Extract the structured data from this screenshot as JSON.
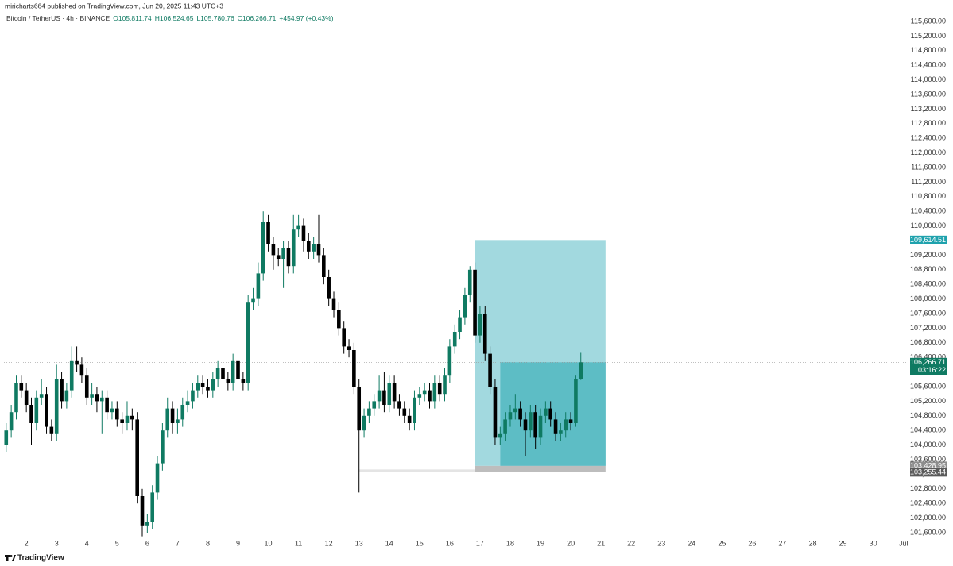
{
  "chart_data": {
    "type": "candlestick",
    "subtitle": "miricharts664 published on TradingView.com, Jun 20, 2025 11:43 UTC+3",
    "title": "Bitcoin / TetherUS · 4h · BINANCE",
    "ohlc_legend": [
      "O105,811.74",
      "H106,524.65",
      "L105,780.76",
      "C106,266.71",
      "+454.97 (+0.43%)"
    ],
    "brand": "TradingView",
    "up_color": "#0f7a62",
    "down_color": "#000000",
    "grid": false,
    "x": [
      1.333,
      1.5,
      1.667,
      1.833,
      2,
      2.167,
      2.333,
      2.5,
      2.667,
      2.833,
      3,
      3.167,
      3.333,
      3.5,
      3.667,
      3.833,
      4,
      4.167,
      4.333,
      4.5,
      4.667,
      4.833,
      5,
      5.167,
      5.333,
      5.5,
      5.667,
      5.833,
      6,
      6.167,
      6.333,
      6.5,
      6.667,
      6.833,
      7,
      7.167,
      7.333,
      7.5,
      7.667,
      7.833,
      8,
      8.167,
      8.333,
      8.5,
      8.667,
      8.833,
      9,
      9.167,
      9.333,
      9.5,
      9.667,
      9.833,
      10,
      10.167,
      10.333,
      10.5,
      10.667,
      10.833,
      11,
      11.167,
      11.333,
      11.5,
      11.667,
      11.833,
      12,
      12.167,
      12.333,
      12.5,
      12.667,
      12.833,
      13,
      13.167,
      13.333,
      13.5,
      13.667,
      13.833,
      14,
      14.167,
      14.333,
      14.5,
      14.667,
      14.833,
      15,
      15.167,
      15.333,
      15.5,
      15.667,
      15.833,
      16,
      16.167,
      16.333,
      16.5,
      16.667,
      16.833,
      17,
      17.167,
      17.333,
      17.5,
      17.667,
      17.833,
      18,
      18.167,
      18.333,
      18.5,
      18.667,
      18.833,
      19,
      19.167,
      19.333,
      19.5,
      19.667,
      19.833,
      20,
      20.167,
      20.333
    ],
    "open": [
      104000,
      104400,
      104900,
      105700,
      105500,
      105100,
      104600,
      105300,
      105400,
      104500,
      104300,
      105800,
      105200,
      105500,
      106300,
      106200,
      105900,
      105300,
      105400,
      105200,
      105300,
      104900,
      105000,
      104700,
      104600,
      104800,
      104700,
      102600,
      101800,
      101900,
      102700,
      103500,
      104400,
      105000,
      104600,
      104700,
      105100,
      105200,
      105500,
      105700,
      105600,
      105500,
      105800,
      106100,
      105800,
      105700,
      106300,
      105800,
      105700,
      107900,
      108000,
      108700,
      110100,
      109500,
      109200,
      109100,
      109400,
      108900,
      109900,
      110000,
      109600,
      109300,
      109500,
      109200,
      108600,
      108000,
      107700,
      107200,
      106700,
      106600,
      105600,
      104400,
      104800,
      105000,
      105200,
      105500,
      105100,
      105700,
      105200,
      105000,
      104800,
      104600,
      105300,
      105400,
      105500,
      105200,
      105700,
      105400,
      105900,
      106700,
      107100,
      107500,
      108100,
      108800,
      107000,
      107600,
      106500,
      105600,
      104200,
      104300,
      104700,
      104900,
      105000,
      104700,
      104400,
      104900,
      104200,
      104800,
      105000,
      104700,
      104300,
      104400,
      104700,
      104600,
      105811.74
    ],
    "high": [
      104600,
      105100,
      105900,
      105900,
      105700,
      105300,
      105500,
      105800,
      105600,
      104700,
      106200,
      106000,
      105700,
      106700,
      106700,
      106400,
      106100,
      105700,
      105600,
      105500,
      105500,
      105200,
      105200,
      104900,
      105200,
      105000,
      104900,
      102800,
      102100,
      102900,
      103700,
      104600,
      105300,
      105200,
      105000,
      105300,
      105500,
      105700,
      105900,
      105900,
      105800,
      106000,
      106300,
      106300,
      106000,
      106500,
      106500,
      106000,
      108100,
      108300,
      109000,
      110400,
      110300,
      109700,
      109400,
      109600,
      109600,
      110300,
      110300,
      110200,
      109800,
      109700,
      110300,
      109400,
      108800,
      108200,
      107900,
      107400,
      106900,
      106800,
      105800,
      105000,
      105200,
      105400,
      105900,
      106000,
      105900,
      105900,
      105400,
      105200,
      105000,
      105500,
      105600,
      105700,
      105700,
      105900,
      105900,
      106100,
      106900,
      107300,
      107700,
      108300,
      108900,
      109000,
      107800,
      107800,
      106700,
      105800,
      104500,
      104900,
      105100,
      105400,
      105200,
      104900,
      105100,
      105100,
      105000,
      105200,
      105200,
      104900,
      104600,
      104900,
      104900,
      105900,
      106524.65
    ],
    "low": [
      103800,
      104200,
      104700,
      105300,
      104900,
      104000,
      104400,
      105100,
      104300,
      104100,
      104100,
      105000,
      105000,
      105300,
      106000,
      105700,
      105100,
      105100,
      104900,
      104300,
      104700,
      104700,
      104500,
      104300,
      104400,
      104400,
      102400,
      101500,
      101600,
      101700,
      102500,
      103300,
      104200,
      104300,
      104300,
      104500,
      104900,
      105000,
      105300,
      105400,
      105300,
      105300,
      105600,
      105600,
      105500,
      105500,
      105600,
      105500,
      105500,
      107700,
      107800,
      108500,
      109300,
      108800,
      108900,
      108300,
      108700,
      108700,
      109700,
      109300,
      109100,
      109100,
      109000,
      108400,
      107800,
      107500,
      107000,
      106500,
      106400,
      105400,
      102700,
      104200,
      104600,
      104800,
      105000,
      104900,
      104900,
      105000,
      104800,
      104600,
      104400,
      104400,
      105100,
      105200,
      105000,
      105000,
      105200,
      105200,
      105700,
      106500,
      106900,
      107300,
      107900,
      106800,
      106800,
      106300,
      105400,
      104000,
      104000,
      104100,
      104500,
      104700,
      104500,
      103700,
      104200,
      103900,
      104000,
      104600,
      104500,
      104100,
      104100,
      104200,
      104400,
      104500,
      105780.76
    ],
    "close": [
      104400,
      104900,
      105700,
      105500,
      105100,
      104600,
      105300,
      105400,
      104500,
      104300,
      105800,
      105200,
      105500,
      106300,
      106200,
      105900,
      105300,
      105400,
      105200,
      105300,
      104900,
      105000,
      104700,
      104600,
      104800,
      104700,
      102600,
      101800,
      101900,
      102700,
      103500,
      104400,
      105000,
      104600,
      104700,
      105100,
      105200,
      105500,
      105700,
      105600,
      105500,
      105800,
      106100,
      105800,
      105700,
      106300,
      105800,
      105700,
      107900,
      108000,
      108700,
      110100,
      109500,
      109200,
      109100,
      109400,
      108900,
      109900,
      110000,
      109600,
      109300,
      109500,
      109200,
      108600,
      108000,
      107700,
      107200,
      106700,
      106600,
      105600,
      104400,
      104800,
      105000,
      105200,
      105500,
      105100,
      105700,
      105200,
      105000,
      104800,
      104600,
      105300,
      105400,
      105500,
      105200,
      105700,
      105400,
      105900,
      106700,
      107100,
      107500,
      108100,
      108800,
      107000,
      107600,
      106500,
      105600,
      104200,
      104300,
      104700,
      104900,
      105000,
      104700,
      104400,
      104900,
      104200,
      104800,
      105000,
      104700,
      104300,
      104400,
      104700,
      104600,
      105811.74,
      106266.71
    ],
    "xlim": [
      1.26,
      31.22
    ],
    "xticks": [
      2,
      3,
      4,
      5,
      6,
      7,
      8,
      9,
      10,
      11,
      12,
      13,
      14,
      15,
      16,
      17,
      18,
      19,
      20,
      21,
      22,
      23,
      24,
      25,
      26,
      27,
      28,
      29,
      30,
      {
        "value": 31,
        "label": "Jul"
      }
    ],
    "ylim": [
      101600,
      115600
    ],
    "yticks": [
      {
        "value": 101600,
        "label": "101,600.00"
      },
      {
        "value": 102000,
        "label": "102,000.00"
      },
      {
        "value": 102400,
        "label": "102,400.00"
      },
      {
        "value": 102800,
        "label": "102,800.00"
      },
      {
        "value": 103200,
        "label": "103,200.00"
      },
      {
        "value": 103600,
        "label": "103,600.00"
      },
      {
        "value": 104000,
        "label": "104,000.00"
      },
      {
        "value": 104400,
        "label": "104,400.00"
      },
      {
        "value": 104800,
        "label": "104,800.00"
      },
      {
        "value": 105200,
        "label": "105,200.00"
      },
      {
        "value": 105600,
        "label": "105,600.00"
      },
      {
        "value": 106000,
        "label": "106,000.00"
      },
      {
        "value": 106400,
        "label": "106,400.00"
      },
      {
        "value": 106800,
        "label": "106,800.00"
      },
      {
        "value": 107200,
        "label": "107,200.00"
      },
      {
        "value": 107600,
        "label": "107,600.00"
      },
      {
        "value": 108000,
        "label": "108,000.00"
      },
      {
        "value": 108400,
        "label": "108,400.00"
      },
      {
        "value": 108800,
        "label": "108,800.00"
      },
      {
        "value": 109200,
        "label": "109,200.00"
      },
      {
        "value": 109600,
        "label": "109,600.00"
      },
      {
        "value": 110000,
        "label": "110,000.00"
      },
      {
        "value": 110400,
        "label": "110,400.00"
      },
      {
        "value": 110800,
        "label": "110,800.00"
      },
      {
        "value": 111200,
        "label": "111,200.00"
      },
      {
        "value": 111600,
        "label": "111,600.00"
      },
      {
        "value": 112000,
        "label": "112,000.00"
      },
      {
        "value": 112400,
        "label": "112,400.00"
      },
      {
        "value": 112800,
        "label": "112,800.00"
      },
      {
        "value": 113200,
        "label": "113,200.00"
      },
      {
        "value": 113600,
        "label": "113,600.00"
      },
      {
        "value": 114000,
        "label": "114,000.00"
      },
      {
        "value": 114400,
        "label": "114,400.00"
      },
      {
        "value": 114800,
        "label": "114,800.00"
      },
      {
        "value": 115200,
        "label": "115,200.00"
      },
      {
        "value": 115600,
        "label": "115,600.00"
      }
    ],
    "position": {
      "x": [
        16.83,
        17.67,
        21.15
      ],
      "line_start": 13,
      "target": {
        "value": 109614.51,
        "label": "109,614.51"
      },
      "current": {
        "value": 106266.71,
        "label": "106,266.71"
      },
      "timer": "03:16:22",
      "entry": {
        "value": 103428.95,
        "label": "103,428.95"
      },
      "stop": {
        "value": 103255.44,
        "label": "103,255.44"
      }
    }
  }
}
